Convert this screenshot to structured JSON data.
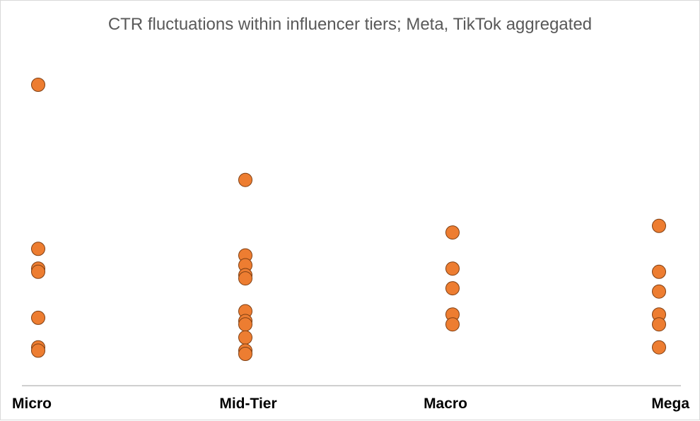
{
  "chart_data": {
    "type": "scatter",
    "title": "CTR fluctuations within influencer tiers; Meta, TikTok aggregated",
    "xlabel": "",
    "ylabel": "",
    "categories": [
      "Micro",
      "Mid-Tier",
      "Macro",
      "Mega"
    ],
    "y_axis_visible": false,
    "ylim": [
      0,
      1
    ],
    "grid": false,
    "legend": "none",
    "colors": {
      "marker_fill": "#ED7D31",
      "marker_stroke": "#7F3F13",
      "axis_line": "#BFBFBF"
    },
    "series": [
      {
        "values_by_category": {
          "Micro": [
            0.9,
            0.4,
            0.34,
            0.33,
            0.19,
            0.1,
            0.09
          ],
          "Mid-Tier": [
            0.61,
            0.38,
            0.35,
            0.32,
            0.31,
            0.21,
            0.18,
            0.17,
            0.13,
            0.09,
            0.08
          ],
          "Macro": [
            0.45,
            0.34,
            0.28,
            0.2,
            0.17
          ],
          "Mega": [
            0.47,
            0.33,
            0.27,
            0.2,
            0.17,
            0.1
          ]
        }
      }
    ]
  }
}
